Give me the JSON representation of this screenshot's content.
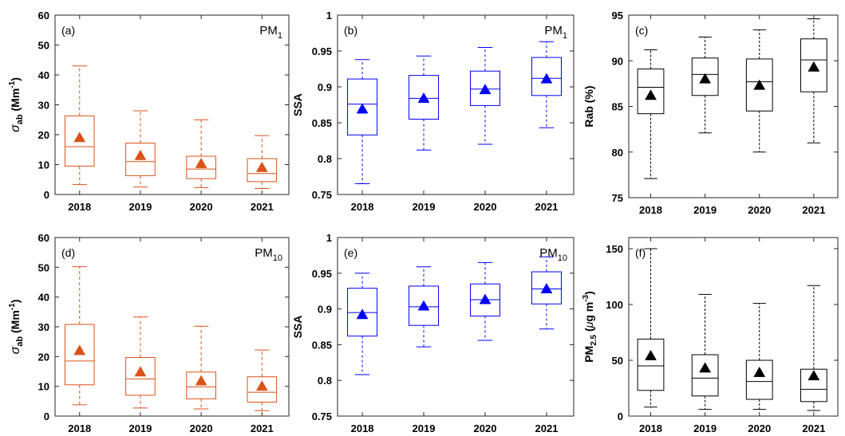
{
  "chart_data": [
    {
      "type": "box",
      "panel_label": "(a)",
      "annotation": {
        "main": "PM",
        "sub": "1"
      },
      "ylabel": {
        "sym": "σ",
        "sub": "ab",
        "unit": " (Mm",
        "sup": "-1",
        "close": ")"
      },
      "ylim": [
        0,
        60
      ],
      "yticks": [
        0,
        10,
        20,
        30,
        40,
        50,
        60
      ],
      "categories": [
        "2018",
        "2019",
        "2020",
        "2021"
      ],
      "color": "#d95319",
      "marker_color": "#d95319",
      "boxes": [
        {
          "min": 3.3,
          "q1": 9.5,
          "median": 16.0,
          "q3": 26.3,
          "max": 43.0,
          "mean": 19.0
        },
        {
          "min": 2.5,
          "q1": 6.3,
          "median": 11.0,
          "q3": 17.2,
          "max": 28.0,
          "mean": 13.0
        },
        {
          "min": 2.3,
          "q1": 5.3,
          "median": 8.5,
          "q3": 12.8,
          "max": 25.0,
          "mean": 10.3
        },
        {
          "min": 2.0,
          "q1": 4.3,
          "median": 7.0,
          "q3": 12.0,
          "max": 19.7,
          "mean": 9.0
        }
      ]
    },
    {
      "type": "box",
      "panel_label": "(b)",
      "annotation": {
        "main": "PM",
        "sub": "1"
      },
      "ylabel": {
        "text": "SSA"
      },
      "ylim": [
        0.75,
        1
      ],
      "yticks": [
        0.75,
        0.8,
        0.85,
        0.9,
        0.95,
        1
      ],
      "ytick_labels": [
        "0.75",
        "0.8",
        "0.85",
        "0.9",
        "0.95",
        "1"
      ],
      "categories": [
        "2018",
        "2019",
        "2020",
        "2021"
      ],
      "color": "#0000ff",
      "marker_color": "#0000ff",
      "boxes": [
        {
          "min": 0.765,
          "q1": 0.833,
          "median": 0.876,
          "q3": 0.911,
          "max": 0.938,
          "mean": 0.869
        },
        {
          "min": 0.812,
          "q1": 0.855,
          "median": 0.884,
          "q3": 0.916,
          "max": 0.943,
          "mean": 0.884
        },
        {
          "min": 0.82,
          "q1": 0.874,
          "median": 0.897,
          "q3": 0.922,
          "max": 0.955,
          "mean": 0.896
        },
        {
          "min": 0.843,
          "q1": 0.888,
          "median": 0.912,
          "q3": 0.941,
          "max": 0.963,
          "mean": 0.911
        }
      ]
    },
    {
      "type": "box",
      "panel_label": "(c)",
      "ylabel": {
        "text": "Rab (%)"
      },
      "ylim": [
        75,
        95
      ],
      "yticks": [
        75,
        80,
        85,
        90,
        95
      ],
      "categories": [
        "2018",
        "2019",
        "2020",
        "2021"
      ],
      "color": "#000000",
      "marker_color": "#000000",
      "boxes": [
        {
          "min": 77.1,
          "q1": 84.2,
          "median": 87.1,
          "q3": 89.1,
          "max": 91.2,
          "mean": 86.2
        },
        {
          "min": 82.1,
          "q1": 86.2,
          "median": 88.5,
          "q3": 90.3,
          "max": 92.6,
          "mean": 88.0
        },
        {
          "min": 80.0,
          "q1": 84.5,
          "median": 87.7,
          "q3": 90.2,
          "max": 93.4,
          "mean": 87.3
        },
        {
          "min": 81.0,
          "q1": 86.6,
          "median": 90.1,
          "q3": 92.4,
          "max": 94.6,
          "mean": 89.3
        }
      ]
    },
    {
      "type": "box",
      "panel_label": "(d)",
      "annotation": {
        "main": "PM",
        "sub": "10"
      },
      "ylabel": {
        "sym": "σ",
        "sub": "ab",
        "unit": " (Mm",
        "sup": "-1",
        "close": ")"
      },
      "ylim": [
        0,
        60
      ],
      "yticks": [
        0,
        10,
        20,
        30,
        40,
        50,
        60
      ],
      "categories": [
        "2018",
        "2019",
        "2020",
        "2021"
      ],
      "color": "#d95319",
      "marker_color": "#d95319",
      "boxes": [
        {
          "min": 3.8,
          "q1": 10.5,
          "median": 18.5,
          "q3": 30.8,
          "max": 50.2,
          "mean": 22.0
        },
        {
          "min": 2.7,
          "q1": 7.0,
          "median": 12.5,
          "q3": 19.7,
          "max": 33.3,
          "mean": 14.8
        },
        {
          "min": 2.4,
          "q1": 5.8,
          "median": 9.8,
          "q3": 14.8,
          "max": 30.2,
          "mean": 11.8
        },
        {
          "min": 1.8,
          "q1": 4.7,
          "median": 8.0,
          "q3": 13.2,
          "max": 22.2,
          "mean": 10.0
        }
      ]
    },
    {
      "type": "box",
      "panel_label": "(e)",
      "annotation": {
        "main": "PM",
        "sub": "10"
      },
      "ylabel": {
        "text": "SSA"
      },
      "ylim": [
        0.75,
        1
      ],
      "yticks": [
        0.75,
        0.8,
        0.85,
        0.9,
        0.95,
        1
      ],
      "ytick_labels": [
        "0.75",
        "0.8",
        "0.85",
        "0.9",
        "0.95",
        "1"
      ],
      "categories": [
        "2018",
        "2019",
        "2020",
        "2021"
      ],
      "color": "#0000ff",
      "marker_color": "#0000ff",
      "boxes": [
        {
          "min": 0.808,
          "q1": 0.862,
          "median": 0.895,
          "q3": 0.929,
          "max": 0.95,
          "mean": 0.892
        },
        {
          "min": 0.847,
          "q1": 0.877,
          "median": 0.903,
          "q3": 0.932,
          "max": 0.959,
          "mean": 0.904
        },
        {
          "min": 0.856,
          "q1": 0.89,
          "median": 0.913,
          "q3": 0.935,
          "max": 0.965,
          "mean": 0.913
        },
        {
          "min": 0.872,
          "q1": 0.907,
          "median": 0.928,
          "q3": 0.952,
          "max": 0.973,
          "mean": 0.928
        }
      ]
    },
    {
      "type": "box",
      "panel_label": "(f)",
      "ylabel": {
        "main": "PM",
        "sub": "2.5",
        "unit": " (",
        "mu": "μ",
        "unit2": "g m",
        "sup": "-3",
        "close": ")"
      },
      "ylim": [
        0,
        160
      ],
      "yticks": [
        0,
        50,
        100,
        150
      ],
      "categories": [
        "2018",
        "2019",
        "2020",
        "2021"
      ],
      "color": "#000000",
      "marker_color": "#000000",
      "boxes": [
        {
          "min": 8,
          "q1": 23,
          "median": 45,
          "q3": 69,
          "max": 150,
          "mean": 54
        },
        {
          "min": 6,
          "q1": 18,
          "median": 34,
          "q3": 55,
          "max": 109,
          "mean": 43
        },
        {
          "min": 6,
          "q1": 15,
          "median": 31,
          "q3": 50,
          "max": 101,
          "mean": 39
        },
        {
          "min": 5,
          "q1": 13,
          "median": 24,
          "q3": 42,
          "max": 117,
          "mean": 36
        }
      ]
    }
  ]
}
